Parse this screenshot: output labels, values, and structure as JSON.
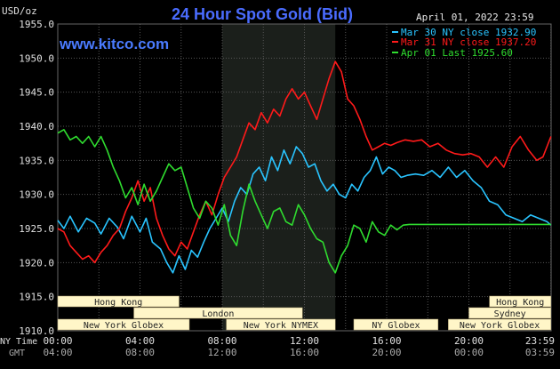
{
  "title": "24 Hour Spot Gold (Bid)",
  "unit_label": "USD/oz",
  "timestamp": "April 01, 2022 23:59",
  "watermark": "www.kitco.com",
  "colors": {
    "background": "#000000",
    "grid": "#555555",
    "title": "#4a6cff",
    "axis_text": "#e0e0e0",
    "shaded_session": "#1b1f1b",
    "session_fill": "#fff6c8",
    "session_text": "#222222",
    "mar30": "#29c4ff",
    "mar31": "#ff1a1a",
    "apr01": "#2fdc2f"
  },
  "legend": [
    {
      "label": "Mar 30 NY close 1932.90",
      "color": "#29c4ff"
    },
    {
      "label": "Mar 31 NY close 1937.20",
      "color": "#ff1a1a"
    },
    {
      "label": "Apr 01 Last 1925.60",
      "color": "#2fdc2f"
    }
  ],
  "x_axis": {
    "row1_label": "NY Time",
    "row2_label": "GMT",
    "ny_ticks": [
      "00:00",
      "04:00",
      "08:00",
      "12:00",
      "16:00",
      "20:00",
      "23:59"
    ],
    "gmt_ticks": [
      "04:00",
      "08:00",
      "12:00",
      "16:00",
      "20:00",
      "00:00",
      "03:59"
    ]
  },
  "sessions": [
    {
      "label": "Hong Kong",
      "start": 0,
      "end": 5.9,
      "row": 0
    },
    {
      "label": "London",
      "start": 3.7,
      "end": 11.9,
      "row": 1
    },
    {
      "label": "New York Globex",
      "start": 0,
      "end": 6.4,
      "row": 2
    },
    {
      "label": "New York NYMEX",
      "start": 8.2,
      "end": 13.5,
      "row": 2
    },
    {
      "label": "NY Globex",
      "start": 14.4,
      "end": 18.5,
      "row": 2
    },
    {
      "label": "Hong Kong",
      "start": 21.0,
      "end": 23.99,
      "row": 0
    },
    {
      "label": "Sydney",
      "start": 20.0,
      "end": 23.99,
      "row": 1
    },
    {
      "label": "New York Globex",
      "start": 19.0,
      "end": 23.99,
      "row": 2
    }
  ],
  "chart_data": {
    "type": "line",
    "title": "24 Hour Spot Gold (Bid)",
    "ylabel": "USD/oz",
    "xlabel": "NY Time",
    "ylim": [
      1910,
      1955
    ],
    "xlim": [
      0,
      24
    ],
    "y_ticks": [
      "1955.0",
      "1950.0",
      "1945.0",
      "1940.0",
      "1935.0",
      "1930.0",
      "1925.0",
      "1920.0",
      "1915.0",
      "1910.0"
    ],
    "grid": true,
    "legend_position": "top-right",
    "shaded_range_hours": [
      8.0,
      13.5
    ],
    "series": [
      {
        "name": "Mar 30 NY close 1932.90",
        "color": "#29c4ff",
        "x": [
          0.0,
          0.3,
          0.6,
          1.0,
          1.4,
          1.8,
          2.1,
          2.5,
          2.9,
          3.2,
          3.6,
          4.0,
          4.3,
          4.6,
          5.0,
          5.3,
          5.6,
          5.9,
          6.2,
          6.5,
          6.8,
          7.1,
          7.4,
          7.7,
          8.0,
          8.3,
          8.6,
          8.9,
          9.2,
          9.5,
          9.8,
          10.1,
          10.4,
          10.7,
          11.0,
          11.3,
          11.6,
          11.9,
          12.2,
          12.5,
          12.8,
          13.1,
          13.4,
          13.7,
          14.0,
          14.3,
          14.6,
          14.9,
          15.2,
          15.5,
          15.8,
          16.1,
          16.4,
          16.7,
          17.0,
          17.4,
          17.8,
          18.2,
          18.6,
          19.0,
          19.4,
          19.8,
          20.2,
          20.6,
          21.0,
          21.4,
          21.8,
          22.2,
          22.6,
          23.0,
          23.4,
          23.8,
          23.99
        ],
        "y": [
          1926.2,
          1925.0,
          1926.8,
          1924.5,
          1926.5,
          1925.8,
          1924.2,
          1926.5,
          1925.2,
          1923.5,
          1926.8,
          1924.5,
          1926.5,
          1923.0,
          1922.0,
          1920.0,
          1918.5,
          1921.0,
          1919.0,
          1921.8,
          1920.8,
          1923.0,
          1925.0,
          1926.5,
          1928.0,
          1926.0,
          1929.0,
          1931.0,
          1930.0,
          1933.0,
          1934.0,
          1932.0,
          1935.5,
          1933.5,
          1936.5,
          1934.5,
          1937.0,
          1936.0,
          1934.0,
          1934.5,
          1932.0,
          1930.5,
          1931.5,
          1930.0,
          1929.5,
          1931.5,
          1930.5,
          1932.5,
          1933.5,
          1935.5,
          1933.0,
          1934.0,
          1933.5,
          1932.5,
          1932.8,
          1933.0,
          1932.8,
          1933.5,
          1932.5,
          1934.0,
          1932.5,
          1933.5,
          1932.0,
          1931.0,
          1929.0,
          1928.5,
          1927.0,
          1926.5,
          1926.0,
          1927.0,
          1926.5,
          1926.0,
          1925.5
        ]
      },
      {
        "name": "Mar 31 NY close 1937.20",
        "color": "#ff1a1a",
        "x": [
          0.0,
          0.3,
          0.6,
          0.9,
          1.2,
          1.5,
          1.8,
          2.1,
          2.4,
          2.7,
          3.0,
          3.3,
          3.6,
          3.9,
          4.2,
          4.5,
          4.8,
          5.1,
          5.4,
          5.7,
          6.0,
          6.3,
          6.6,
          6.9,
          7.2,
          7.5,
          7.8,
          8.1,
          8.4,
          8.7,
          9.0,
          9.3,
          9.6,
          9.9,
          10.2,
          10.5,
          10.8,
          11.1,
          11.4,
          11.7,
          12.0,
          12.3,
          12.6,
          12.9,
          13.2,
          13.5,
          13.8,
          14.1,
          14.4,
          14.7,
          15.0,
          15.3,
          15.6,
          15.9,
          16.2,
          16.5,
          16.9,
          17.3,
          17.7,
          18.1,
          18.5,
          18.9,
          19.3,
          19.7,
          20.1,
          20.5,
          20.9,
          21.3,
          21.7,
          22.1,
          22.5,
          22.9,
          23.3,
          23.6,
          23.99
        ],
        "y": [
          1925.0,
          1924.5,
          1922.5,
          1921.5,
          1920.5,
          1921.0,
          1920.0,
          1921.5,
          1922.5,
          1924.0,
          1925.0,
          1927.5,
          1929.5,
          1932.0,
          1929.0,
          1931.0,
          1926.5,
          1924.0,
          1922.0,
          1921.0,
          1923.0,
          1922.0,
          1924.5,
          1927.0,
          1929.0,
          1927.0,
          1930.0,
          1932.5,
          1934.0,
          1935.5,
          1938.0,
          1940.5,
          1939.5,
          1942.0,
          1940.5,
          1942.5,
          1941.5,
          1944.0,
          1945.5,
          1944.0,
          1945.0,
          1943.0,
          1941.0,
          1944.0,
          1947.0,
          1949.5,
          1948.0,
          1944.0,
          1943.0,
          1941.0,
          1938.5,
          1936.5,
          1937.0,
          1937.5,
          1937.2,
          1937.6,
          1938.0,
          1937.8,
          1938.0,
          1937.0,
          1937.5,
          1936.5,
          1936.0,
          1935.8,
          1936.0,
          1935.5,
          1934.0,
          1935.5,
          1934.0,
          1937.0,
          1938.5,
          1936.5,
          1935.0,
          1935.5,
          1938.5
        ]
      },
      {
        "name": "Apr 01 Last 1925.60",
        "color": "#2fdc2f",
        "x": [
          0.0,
          0.3,
          0.6,
          0.9,
          1.2,
          1.5,
          1.8,
          2.1,
          2.4,
          2.7,
          3.0,
          3.3,
          3.6,
          3.9,
          4.2,
          4.5,
          4.8,
          5.1,
          5.4,
          5.7,
          6.0,
          6.3,
          6.6,
          6.9,
          7.2,
          7.5,
          7.8,
          8.1,
          8.4,
          8.7,
          9.0,
          9.3,
          9.6,
          9.9,
          10.2,
          10.5,
          10.8,
          11.1,
          11.4,
          11.7,
          12.0,
          12.3,
          12.6,
          12.9,
          13.2,
          13.5,
          13.8,
          14.1,
          14.4,
          14.7,
          15.0,
          15.3,
          15.6,
          15.9,
          16.2,
          16.5,
          16.8,
          17.1,
          17.4,
          17.7,
          18.0,
          18.3,
          18.6,
          18.9,
          19.2,
          19.5,
          19.8,
          20.1,
          20.4,
          20.7,
          21.0,
          21.3,
          21.6,
          21.9,
          22.2,
          22.5,
          22.8,
          23.1,
          23.4,
          23.7,
          23.99
        ],
        "y": [
          1939.0,
          1939.5,
          1938.0,
          1938.5,
          1937.5,
          1938.5,
          1937.0,
          1938.5,
          1936.5,
          1934.0,
          1932.0,
          1929.5,
          1931.0,
          1928.5,
          1931.5,
          1929.0,
          1930.5,
          1932.5,
          1934.5,
          1933.5,
          1934.0,
          1931.0,
          1928.0,
          1926.5,
          1929.0,
          1928.0,
          1925.5,
          1928.5,
          1924.0,
          1922.5,
          1927.5,
          1931.5,
          1929.0,
          1927.0,
          1925.0,
          1927.5,
          1928.0,
          1926.0,
          1925.5,
          1928.5,
          1927.0,
          1925.0,
          1923.5,
          1923.0,
          1920.0,
          1918.5,
          1921.0,
          1922.5,
          1925.5,
          1925.0,
          1923.0,
          1926.0,
          1924.5,
          1924.0,
          1925.5,
          1924.8,
          1925.5,
          1925.6,
          1925.6,
          1925.6,
          1925.6,
          1925.6,
          1925.6,
          1925.6,
          1925.6,
          1925.6,
          1925.6,
          1925.6,
          1925.6,
          1925.6,
          1925.6,
          1925.6,
          1925.6,
          1925.6,
          1925.6,
          1925.6,
          1925.6,
          1925.6,
          1925.6,
          1925.6,
          1925.6
        ]
      }
    ]
  }
}
